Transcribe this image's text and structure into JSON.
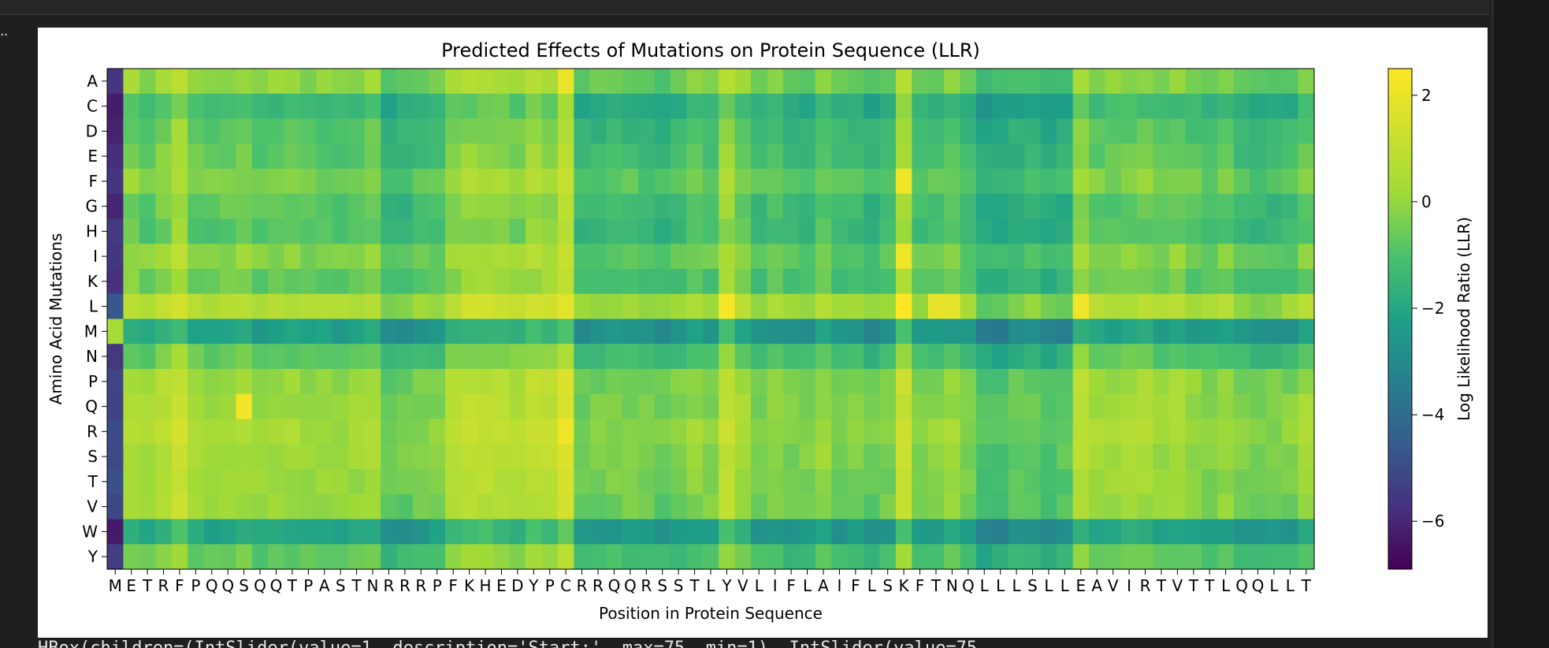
{
  "output_text": "HBox(children=(IntSlider(value=1, description='Start:', max=75, min=1), IntSlider(value=75,",
  "chart_data": {
    "type": "heatmap",
    "title": "Predicted Effects of Mutations on Protein Sequence (LLR)",
    "xlabel": "Position in Protein Sequence",
    "ylabel": "Amino Acid Mutations",
    "colorbar_label": "Log Likelihood Ratio (LLR)",
    "colormap": "viridis",
    "vmin": -6.9,
    "vmax": 2.5,
    "colorbar_ticks": [
      2,
      0,
      -2,
      -4,
      -6
    ],
    "colorbar_tick_labels": [
      "2",
      "0",
      "−2",
      "−4",
      "−6"
    ],
    "x_sequence": [
      "M",
      "E",
      "T",
      "R",
      "F",
      "P",
      "Q",
      "Q",
      "S",
      "Q",
      "Q",
      "T",
      "P",
      "A",
      "S",
      "T",
      "N",
      "R",
      "R",
      "R",
      "P",
      "F",
      "K",
      "H",
      "E",
      "D",
      "Y",
      "P",
      "C",
      "R",
      "R",
      "Q",
      "Q",
      "R",
      "S",
      "S",
      "T",
      "L",
      "Y",
      "V",
      "L",
      "I",
      "F",
      "L",
      "A",
      "I",
      "F",
      "L",
      "S",
      "K",
      "F",
      "T",
      "N",
      "Q",
      "L",
      "L",
      "L",
      "S",
      "L",
      "L",
      "E",
      "A",
      "V",
      "I",
      "R",
      "T",
      "V",
      "T",
      "T",
      "L",
      "Q",
      "Q",
      "L",
      "L",
      "T"
    ],
    "y_mutations": [
      "A",
      "C",
      "D",
      "E",
      "F",
      "G",
      "H",
      "I",
      "K",
      "L",
      "M",
      "N",
      "P",
      "Q",
      "R",
      "S",
      "T",
      "V",
      "W",
      "Y"
    ],
    "column_offsets": [
      -5.5,
      0.5,
      0.2,
      0.6,
      1.2,
      0.3,
      0.1,
      0.3,
      0.4,
      0.1,
      0.2,
      0.2,
      0.1,
      0.1,
      0.0,
      0.1,
      0.4,
      -0.6,
      -0.5,
      -0.3,
      -0.2,
      0.6,
      0.9,
      0.9,
      0.8,
      0.6,
      1.0,
      0.9,
      1.6,
      -0.5,
      -0.4,
      -0.3,
      -0.3,
      -0.4,
      -0.6,
      -0.3,
      0.0,
      -0.2,
      1.0,
      0.3,
      -0.3,
      -0.1,
      -0.4,
      -0.4,
      0.1,
      -0.4,
      -0.3,
      -0.6,
      -0.3,
      1.2,
      -0.2,
      -0.2,
      0.1,
      -0.3,
      -1.0,
      -1.0,
      -0.7,
      -0.6,
      -0.9,
      -0.8,
      0.8,
      0.2,
      0.2,
      0.3,
      0.4,
      0.1,
      0.3,
      0.0,
      -0.2,
      0.1,
      -0.3,
      -0.5,
      -0.4,
      -0.3,
      0.2
    ],
    "row_offsets": [
      0.3,
      -0.9,
      -0.5,
      -0.3,
      0.1,
      -0.4,
      -0.5,
      0.2,
      -0.2,
      1.0,
      -1.8,
      -0.4,
      0.5,
      0.6,
      0.8,
      0.6,
      0.5,
      0.4,
      -1.6,
      -0.3
    ],
    "base_llr": -0.6,
    "highlights": [
      {
        "row": "L",
        "col": 49,
        "value": 2.5
      },
      {
        "row": "L",
        "col": 38,
        "value": 2.3
      },
      {
        "row": "Q",
        "col": 8,
        "value": 2.2
      },
      {
        "row": "F",
        "col": 49,
        "value": 2.1
      },
      {
        "row": "I",
        "col": 49,
        "value": 2.1
      },
      {
        "row": "R",
        "col": 28,
        "value": 2.2
      },
      {
        "row": "L",
        "col": 60,
        "value": 2.2
      },
      {
        "row": "A",
        "col": 28,
        "value": 2.0
      },
      {
        "row": "L",
        "col": 51,
        "value": 1.9
      },
      {
        "row": "L",
        "col": 52,
        "value": 1.9
      }
    ],
    "m_row_col0_value": 0.3
  }
}
